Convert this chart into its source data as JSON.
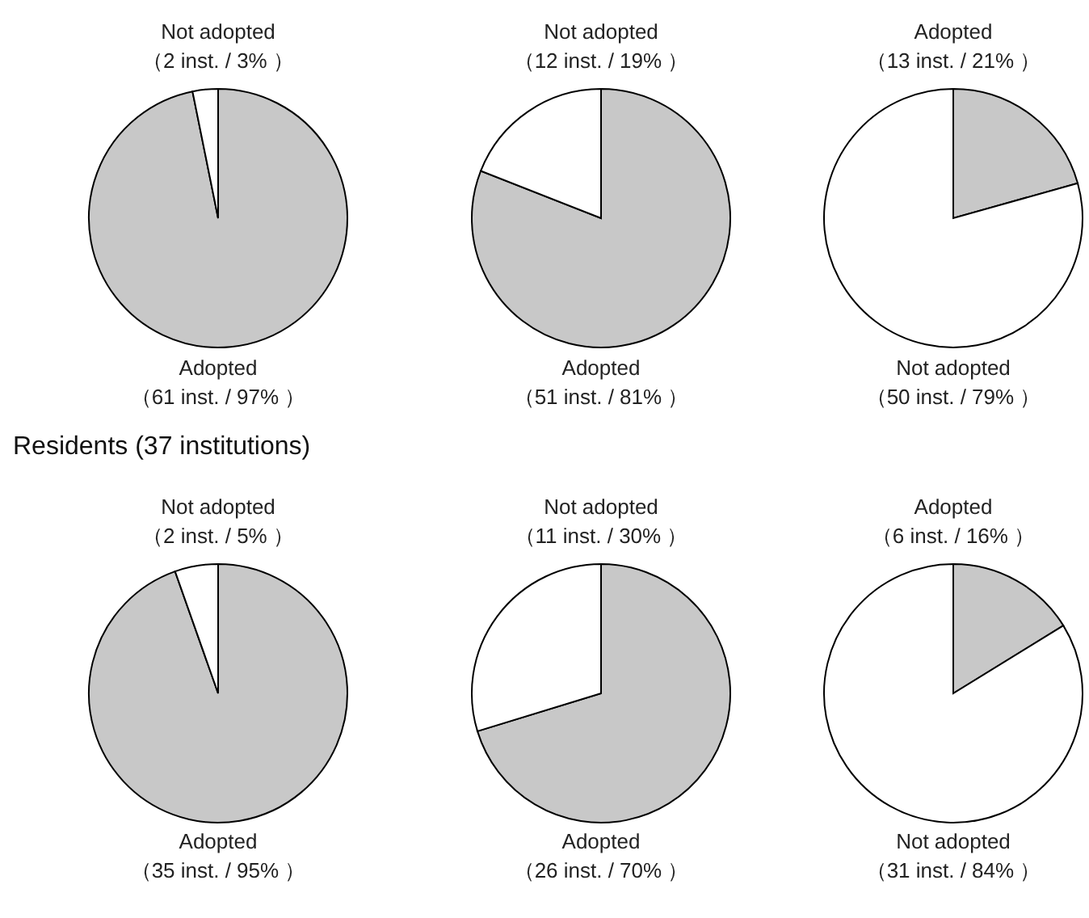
{
  "chart_data": [
    {
      "type": "pie",
      "categories": [
        "Adopted",
        "Not adopted"
      ],
      "values": [
        61,
        2
      ],
      "value_labels": [
        "（61 inst. / 97% ）",
        "（2 inst. / 3% ）"
      ],
      "colors": [
        "#c8c8c8",
        "#ffffff"
      ]
    },
    {
      "type": "pie",
      "categories": [
        "Adopted",
        "Not adopted"
      ],
      "values": [
        51,
        12
      ],
      "value_labels": [
        "（51 inst. / 81% ）",
        "（12 inst. / 19% ）"
      ],
      "colors": [
        "#c8c8c8",
        "#ffffff"
      ]
    },
    {
      "type": "pie",
      "categories": [
        "Adopted",
        "Not adopted"
      ],
      "values": [
        13,
        50
      ],
      "value_labels": [
        "（13 inst. / 21% ）",
        "（50 inst. / 79% ）"
      ],
      "colors": [
        "#c8c8c8",
        "#ffffff"
      ]
    },
    {
      "type": "pie",
      "title": "Residents (37 institutions)",
      "categories": [
        "Adopted",
        "Not adopted"
      ],
      "values": [
        35,
        2
      ],
      "value_labels": [
        "（35 inst. / 95% ）",
        "（2 inst. / 5% ）"
      ],
      "colors": [
        "#c8c8c8",
        "#ffffff"
      ]
    },
    {
      "type": "pie",
      "categories": [
        "Adopted",
        "Not adopted"
      ],
      "values": [
        26,
        11
      ],
      "value_labels": [
        "（26 inst. / 70% ）",
        "（11 inst. / 30% ）"
      ],
      "colors": [
        "#c8c8c8",
        "#ffffff"
      ]
    },
    {
      "type": "pie",
      "categories": [
        "Adopted",
        "Not adopted"
      ],
      "values": [
        6,
        31
      ],
      "value_labels": [
        "（6 inst. / 16% ）",
        "（31 inst. / 84% ）"
      ],
      "colors": [
        "#c8c8c8",
        "#ffffff"
      ]
    }
  ]
}
